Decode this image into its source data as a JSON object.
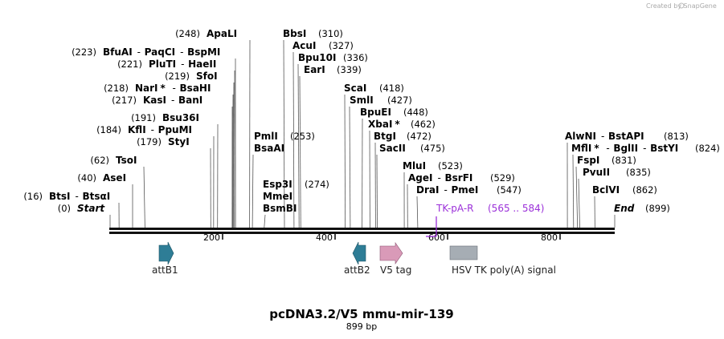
{
  "credit": "Created by SnapGene",
  "title": "pcDNA3.2/V5 mmu-mir-139",
  "length_label": "899 bp",
  "ticks": [
    "200",
    "400",
    "600",
    "800"
  ],
  "start_label": "Start",
  "start_pos": "(0)",
  "end_label": "End",
  "end_pos": "(899)",
  "enzymes": [
    {
      "pos": "(16)",
      "first": "BtsI",
      "first_star": false,
      "second": "BtsαI"
    },
    {
      "pos": "(40)",
      "first": "AseI"
    },
    {
      "pos": "(62)",
      "first": "TsoI"
    },
    {
      "pos": "(179)",
      "first": "StyI"
    },
    {
      "pos": "(184)",
      "first": "KflI",
      "first_star": false,
      "second": "PpuMI"
    },
    {
      "pos": "(191)",
      "first": "Bsu36I"
    },
    {
      "pos": "(217)",
      "first": "KasI",
      "first_star": false,
      "second": "BanI"
    },
    {
      "pos": "(218)",
      "first": "NarI",
      "first_star": true,
      "second": "BsaHI"
    },
    {
      "pos": "(219)",
      "first": "SfoI"
    },
    {
      "pos": "(221)",
      "first": "PluTI",
      "first_star": false,
      "second": "HaeII"
    },
    {
      "pos": "(223)",
      "first": "BfuAI",
      "first_star": false,
      "second": "PaqCI",
      "third": "BspMI"
    },
    {
      "pos": "(248)",
      "first": "ApaLI"
    },
    {
      "pos": "(253)",
      "first": "PmlI",
      "stack": [
        "BsaAI"
      ]
    },
    {
      "pos": "(274)",
      "first": "Esp3I",
      "stack": [
        "MmeI",
        "BsmBI"
      ]
    },
    {
      "pos": "(310)",
      "first": "BbsI"
    },
    {
      "pos": "(327)",
      "first": "AcuI"
    },
    {
      "pos": "(336)",
      "first": "Bpu10I"
    },
    {
      "pos": "(339)",
      "first": "EarI"
    },
    {
      "pos": "(418)",
      "first": "ScaI"
    },
    {
      "pos": "(427)",
      "first": "SmlI"
    },
    {
      "pos": "(448)",
      "first": "BpuEI"
    },
    {
      "pos": "(462)",
      "first": "XbaI",
      "first_star": true
    },
    {
      "pos": "(472)",
      "first": "BtgI"
    },
    {
      "pos": "(475)",
      "first": "SacII"
    },
    {
      "pos": "(523)",
      "first": "MluI"
    },
    {
      "pos": "(529)",
      "first": "AgeI",
      "first_star": false,
      "second": "BsrFI"
    },
    {
      "pos": "(547)",
      "first": "DraI",
      "first_star": false,
      "second": "PmeI"
    },
    {
      "pos": "(813)",
      "first": "AlwNI",
      "first_star": false,
      "second": "BstAPI"
    },
    {
      "pos": "(824)",
      "first": "MflI",
      "first_star": true,
      "second": "BglII",
      "third": "BstYI"
    },
    {
      "pos": "(831)",
      "first": "FspI"
    },
    {
      "pos": "(835)",
      "first": "PvuII"
    },
    {
      "pos": "(862)",
      "first": "BclVI"
    }
  ],
  "primer": {
    "name": "TK-pA-R",
    "range": "(565 .. 584)",
    "color": "#9b30d9"
  },
  "features": [
    {
      "name": "attB1",
      "color": "#2e7d96"
    },
    {
      "name": "attB2",
      "color": "#2e7d96"
    },
    {
      "name": "V5 tag",
      "color": "#d99ab8"
    },
    {
      "name": "HSV TK poly(A) signal",
      "color": "#a6adb4"
    }
  ]
}
